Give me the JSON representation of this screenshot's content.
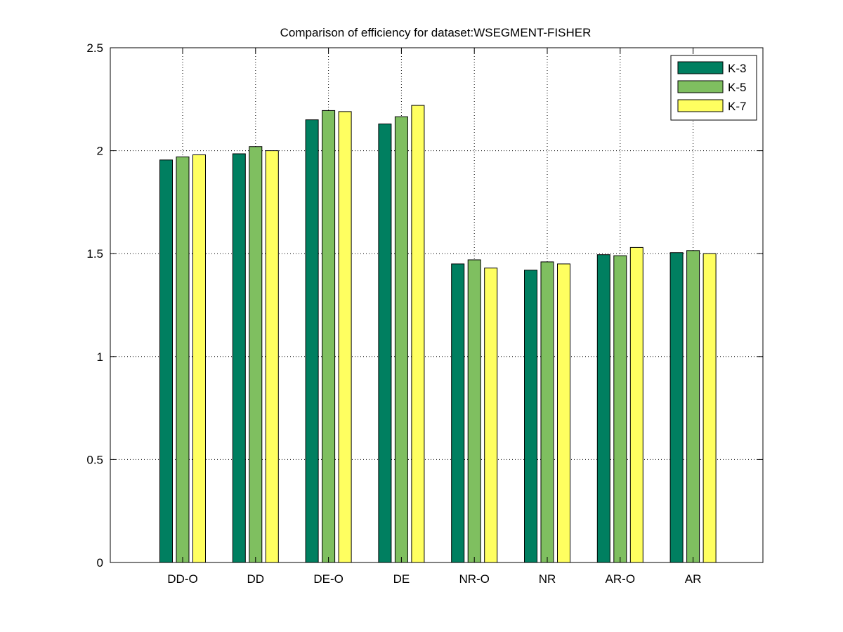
{
  "chart_data": {
    "type": "bar",
    "title": "Comparison of efficiency for dataset:WSEGMENT-FISHER",
    "xlabel": "",
    "ylabel": "",
    "categories": [
      "DD-O",
      "DD",
      "DE-O",
      "DE",
      "NR-O",
      "NR",
      "AR-O",
      "AR"
    ],
    "series": [
      {
        "name": "K-3",
        "color": "#007f60",
        "values": [
          1.955,
          1.985,
          2.15,
          2.13,
          1.45,
          1.42,
          1.495,
          1.505
        ]
      },
      {
        "name": "K-5",
        "color": "#7fbf60",
        "values": [
          1.97,
          2.02,
          2.195,
          2.165,
          1.47,
          1.46,
          1.49,
          1.515
        ]
      },
      {
        "name": "K-7",
        "color": "#ffff60",
        "values": [
          1.98,
          2.0,
          2.19,
          2.22,
          1.43,
          1.45,
          1.53,
          1.5
        ]
      }
    ],
    "ylim": [
      0,
      2.5
    ],
    "yticks": [
      0,
      0.5,
      1,
      1.5,
      2,
      2.5
    ],
    "ytick_labels": [
      "0",
      "0.5",
      "1",
      "1.5",
      "2",
      "2.5"
    ],
    "grid": true,
    "legend_position": "top-right"
  }
}
